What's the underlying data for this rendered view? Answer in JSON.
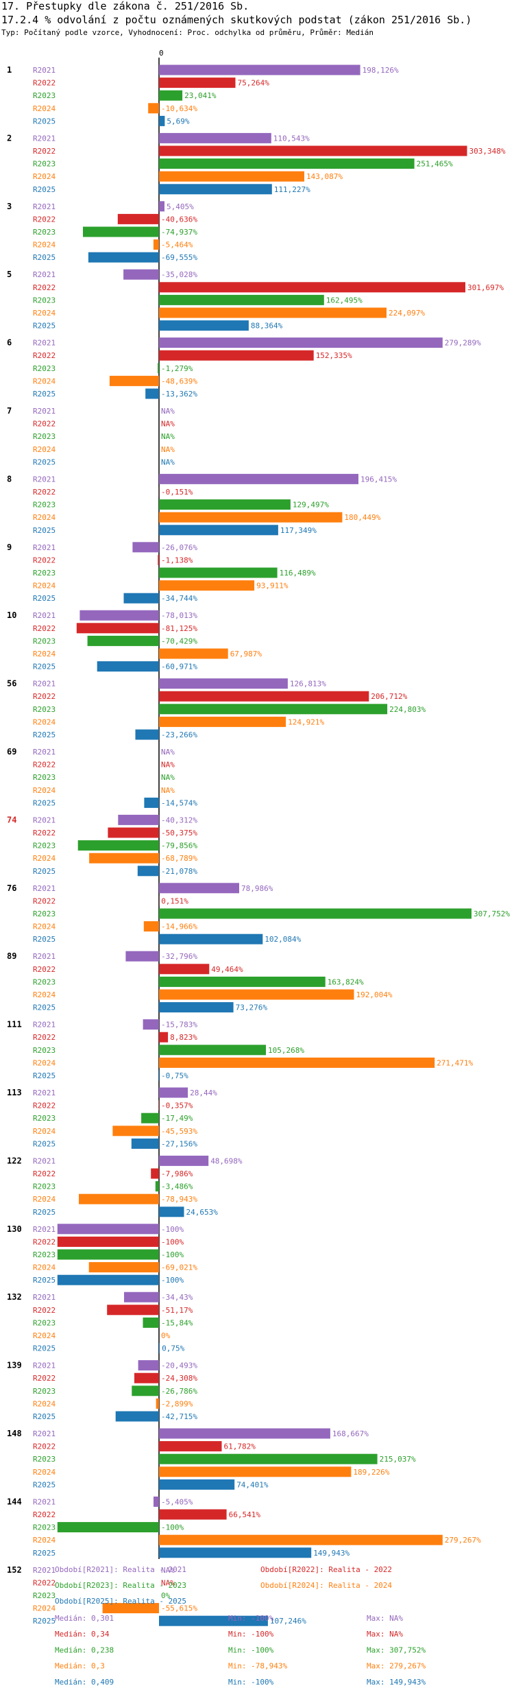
{
  "chart_data": {
    "type": "bar",
    "orientation": "horizontal",
    "title": "17. Přestupky dle zákona č. 251/2016 Sb.",
    "subtitle": "17.2.4 % odvolání z počtu oznámených skutkových podstat (zákon 251/2016 Sb.)",
    "note": "Typ: Počítaný podle vzorce, Vyhodnocení: Proc. odchylka od průměru, Průměr: Medián",
    "zero_label": "0",
    "series_names": [
      "R2021",
      "R2022",
      "R2023",
      "R2024",
      "R2025"
    ],
    "colors": {
      "R2021": "#9467bd",
      "R2022": "#d62728",
      "R2023": "#2ca02c",
      "R2024": "#ff7f0e",
      "R2025": "#1f77b4"
    },
    "groups": [
      {
        "label": "1",
        "highlight": false,
        "labels": [
          "198,126%",
          "75,264%",
          "23,041%",
          "-10,634%",
          "5,69%"
        ],
        "values": [
          198.126,
          75.264,
          23.041,
          -10.634,
          5.69
        ]
      },
      {
        "label": "2",
        "highlight": false,
        "labels": [
          "110,543%",
          "303,348%",
          "251,465%",
          "143,087%",
          "111,227%"
        ],
        "values": [
          110.543,
          303.348,
          251.465,
          143.087,
          111.227
        ]
      },
      {
        "label": "3",
        "highlight": false,
        "labels": [
          "5,405%",
          "-40,636%",
          "-74,937%",
          "-5,464%",
          "-69,555%"
        ],
        "values": [
          5.405,
          -40.636,
          -74.937,
          -5.464,
          -69.555
        ]
      },
      {
        "label": "5",
        "highlight": false,
        "labels": [
          "-35,028%",
          "301,697%",
          "162,495%",
          "224,097%",
          "88,364%"
        ],
        "values": [
          -35.028,
          301.697,
          162.495,
          224.097,
          88.364
        ]
      },
      {
        "label": "6",
        "highlight": false,
        "labels": [
          "279,289%",
          "152,335%",
          "-1,279%",
          "-48,639%",
          "-13,362%"
        ],
        "values": [
          279.289,
          152.335,
          -1.279,
          -48.639,
          -13.362
        ]
      },
      {
        "label": "7",
        "highlight": false,
        "labels": [
          "NA%",
          "NA%",
          "NA%",
          "NA%",
          "NA%"
        ],
        "values": [
          null,
          null,
          null,
          null,
          null
        ]
      },
      {
        "label": "8",
        "highlight": false,
        "labels": [
          "196,415%",
          "-0,151%",
          "129,497%",
          "180,449%",
          "117,349%"
        ],
        "values": [
          196.415,
          -0.151,
          129.497,
          180.449,
          117.349
        ]
      },
      {
        "label": "9",
        "highlight": false,
        "labels": [
          "-26,076%",
          "-1,138%",
          "116,489%",
          "93,911%",
          "-34,744%"
        ],
        "values": [
          -26.076,
          -1.138,
          116.489,
          93.911,
          -34.744
        ]
      },
      {
        "label": "10",
        "highlight": false,
        "labels": [
          "-78,013%",
          "-81,125%",
          "-70,429%",
          "67,987%",
          "-60,971%"
        ],
        "values": [
          -78.013,
          -81.125,
          -70.429,
          67.987,
          -60.971
        ]
      },
      {
        "label": "56",
        "highlight": false,
        "labels": [
          "126,813%",
          "206,712%",
          "224,803%",
          "124,921%",
          "-23,266%"
        ],
        "values": [
          126.813,
          206.712,
          224.803,
          124.921,
          -23.266
        ]
      },
      {
        "label": "69",
        "highlight": false,
        "labels": [
          "NA%",
          "NA%",
          "NA%",
          "NA%",
          "-14,574%"
        ],
        "values": [
          null,
          null,
          null,
          null,
          -14.574
        ]
      },
      {
        "label": "74",
        "highlight": true,
        "labels": [
          "-40,312%",
          "-50,375%",
          "-79,856%",
          "-68,789%",
          "-21,078%"
        ],
        "values": [
          -40.312,
          -50.375,
          -79.856,
          -68.789,
          -21.078
        ]
      },
      {
        "label": "76",
        "highlight": false,
        "labels": [
          "78,986%",
          "0,151%",
          "307,752%",
          "-14,966%",
          "102,084%"
        ],
        "values": [
          78.986,
          0.151,
          307.752,
          -14.966,
          102.084
        ]
      },
      {
        "label": "89",
        "highlight": false,
        "labels": [
          "-32,796%",
          "49,464%",
          "163,824%",
          "192,004%",
          "73,276%"
        ],
        "values": [
          -32.796,
          49.464,
          163.824,
          192.004,
          73.276
        ]
      },
      {
        "label": "111",
        "highlight": false,
        "labels": [
          "-15,783%",
          "8,823%",
          "105,268%",
          "271,471%",
          "-0,75%"
        ],
        "values": [
          -15.783,
          8.823,
          105.268,
          271.471,
          -0.75
        ]
      },
      {
        "label": "113",
        "highlight": false,
        "labels": [
          "28,44%",
          "-0,357%",
          "-17,49%",
          "-45,593%",
          "-27,156%"
        ],
        "values": [
          28.44,
          -0.357,
          -17.49,
          -45.593,
          -27.156
        ]
      },
      {
        "label": "122",
        "highlight": false,
        "labels": [
          "48,698%",
          "-7,986%",
          "-3,486%",
          "-78,943%",
          "24,653%"
        ],
        "values": [
          48.698,
          -7.986,
          -3.486,
          -78.943,
          24.653
        ]
      },
      {
        "label": "130",
        "highlight": false,
        "labels": [
          "-100%",
          "-100%",
          "-100%",
          "-69,021%",
          "-100%"
        ],
        "values": [
          -100,
          -100,
          -100,
          -69.021,
          -100
        ]
      },
      {
        "label": "132",
        "highlight": false,
        "labels": [
          "-34,43%",
          "-51,17%",
          "-15,84%",
          "0%",
          "0,75%"
        ],
        "values": [
          -34.43,
          -51.17,
          -15.84,
          0,
          0.75
        ]
      },
      {
        "label": "139",
        "highlight": false,
        "labels": [
          "-20,493%",
          "-24,308%",
          "-26,786%",
          "-2,899%",
          "-42,715%"
        ],
        "values": [
          -20.493,
          -24.308,
          -26.786,
          -2.899,
          -42.715
        ]
      },
      {
        "label": "148",
        "highlight": false,
        "labels": [
          "168,667%",
          "61,782%",
          "215,037%",
          "189,226%",
          "74,401%"
        ],
        "values": [
          168.667,
          61.782,
          215.037,
          189.226,
          74.401
        ]
      },
      {
        "label": "144",
        "highlight": false,
        "labels": [
          "-5,405%",
          "66,541%",
          "-100%",
          "279,267%",
          "149,943%"
        ],
        "values": [
          -5.405,
          66.541,
          -100,
          279.267,
          149.943
        ]
      },
      {
        "label": "152",
        "highlight": false,
        "labels": [
          "NA%",
          "NA%",
          "0%",
          "-55,615%",
          "107,246%"
        ],
        "values": [
          null,
          null,
          0,
          -55.615,
          107.246
        ]
      }
    ],
    "legend": [
      {
        "series": "R2021",
        "text": "Období[R2021]: Realita - 2021"
      },
      {
        "series": "R2022",
        "text": "Období[R2022]: Realita - 2022"
      },
      {
        "series": "R2023",
        "text": "Období[R2023]: Realita - 2023"
      },
      {
        "series": "R2024",
        "text": "Období[R2024]: Realita - 2024"
      },
      {
        "series": "R2025",
        "text": "Období[R2025]: Realita - 2025"
      }
    ],
    "stats": [
      {
        "series": "R2021",
        "median": "Medián: 0,301",
        "min": "Min: -100%",
        "max": "Max: NA%"
      },
      {
        "series": "R2022",
        "median": "Medián: 0,34",
        "min": "Min: -100%",
        "max": "Max: NA%"
      },
      {
        "series": "R2023",
        "median": "Medián: 0,238",
        "min": "Min: -100%",
        "max": "Max: 307,752%"
      },
      {
        "series": "R2024",
        "median": "Medián: 0,3",
        "min": "Min: -78,943%",
        "max": "Max: 279,267%"
      },
      {
        "series": "R2025",
        "median": "Medián: 0,409",
        "min": "Min: -100%",
        "max": "Max: 149,943%"
      }
    ]
  }
}
